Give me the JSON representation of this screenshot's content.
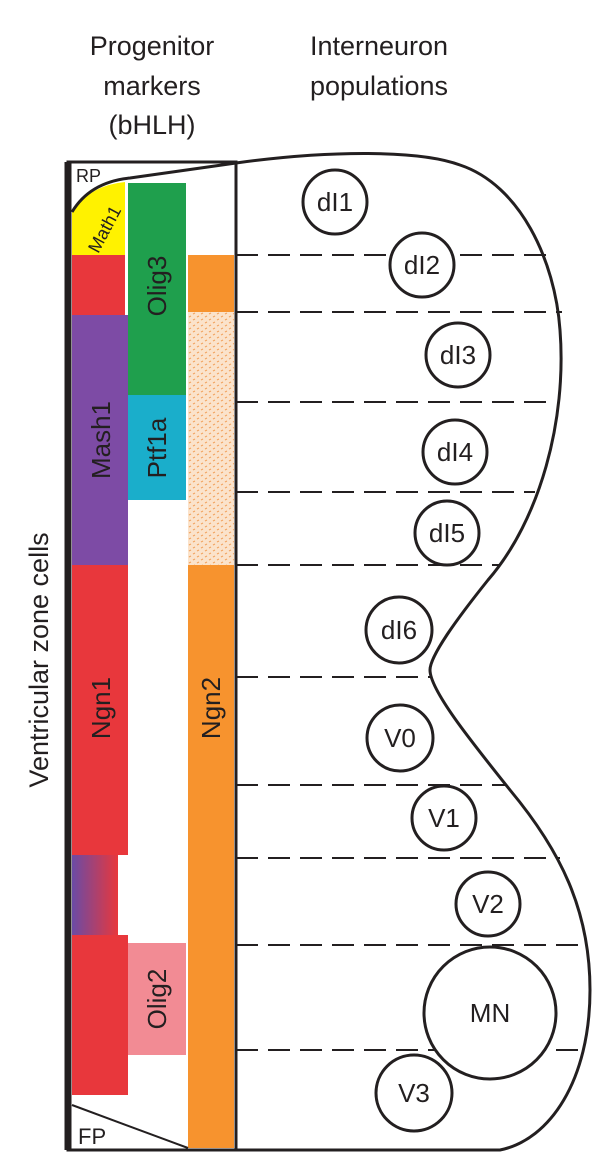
{
  "headers": {
    "progenitor": [
      "Progenitor",
      "markers",
      "(bHLH)"
    ],
    "interneuron": [
      "Interneuron",
      "populations"
    ]
  },
  "side_label": "Ventricular zone cells",
  "plates": {
    "roof": "RP",
    "floor": "FP"
  },
  "markers": {
    "math1": {
      "label": "Math1",
      "color": "#fff200"
    },
    "mash1": {
      "label": "Mash1",
      "color": "#7d4ba5"
    },
    "ngn1": {
      "label": "Ngn1",
      "color": "#e8373c"
    },
    "olig3": {
      "label": "Olig3",
      "color": "#1f9f4d"
    },
    "ptf1a": {
      "label": "Ptf1a",
      "color": "#1aaecb"
    },
    "olig2": {
      "label": "Olig2",
      "color": "#f28b94"
    },
    "ngn2": {
      "label": "Ngn2",
      "color": "#f7932e"
    }
  },
  "populations": [
    "dI1",
    "dI2",
    "dI3",
    "dI4",
    "dI5",
    "dI6",
    "V0",
    "V1",
    "V2",
    "MN",
    "V3"
  ],
  "colors": {
    "stroke": "#231f20",
    "red": "#e8373c",
    "purple": "#7d4ba5",
    "orange": "#f7932e",
    "stipple": "#f4c9a0"
  }
}
